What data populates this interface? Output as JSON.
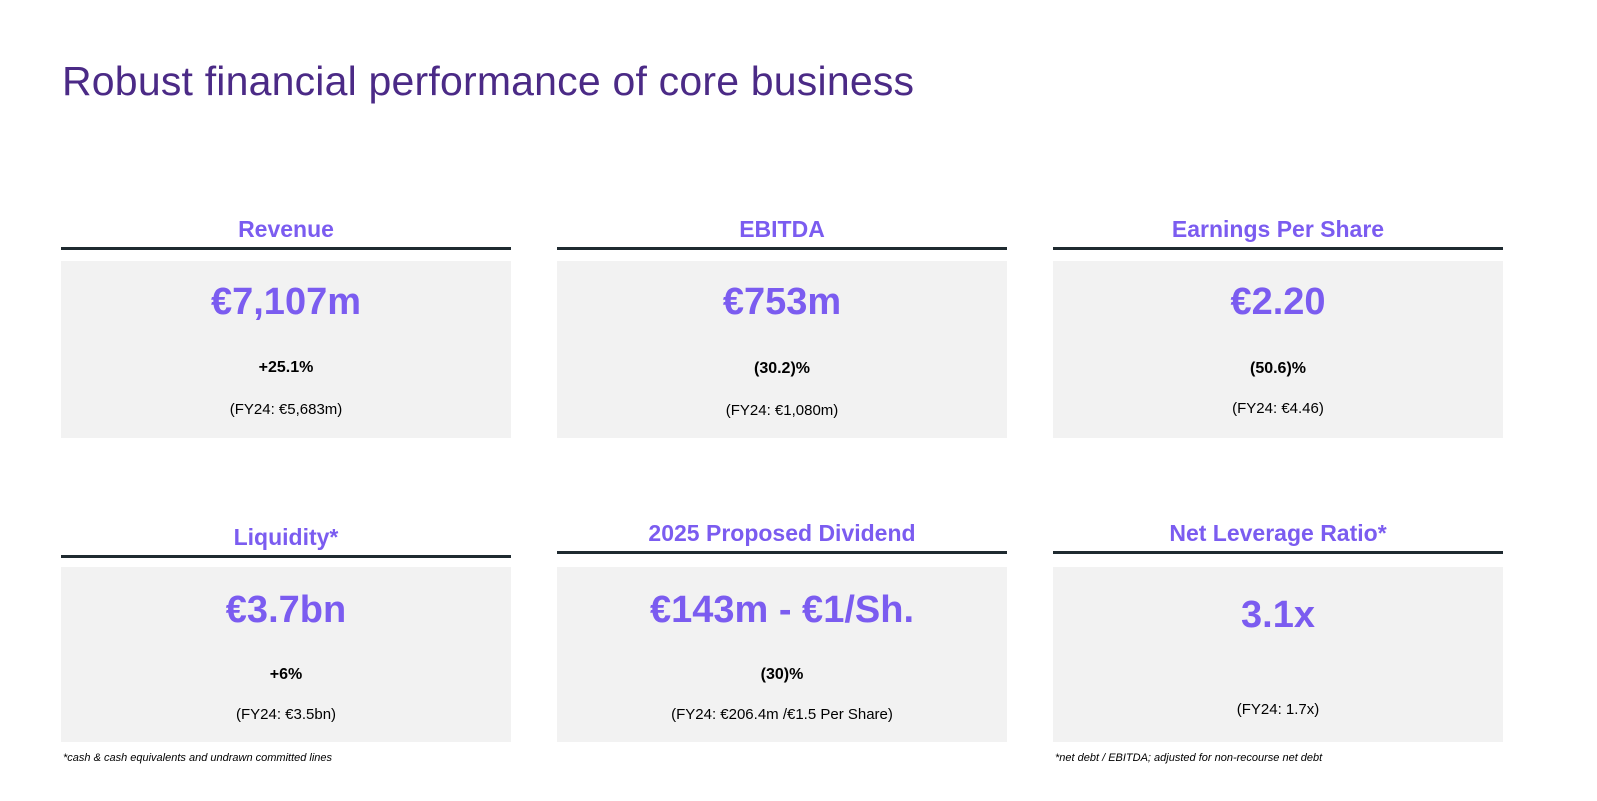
{
  "title": "Robust financial performance of core business",
  "cards": [
    {
      "heading": "Revenue",
      "value": "€7,107m",
      "change": "+25.1%",
      "prior": "(FY24: €5,683m)"
    },
    {
      "heading": "EBITDA",
      "value": "€753m",
      "change": "(30.2)%",
      "prior": "(FY24: €1,080m)"
    },
    {
      "heading": "Earnings Per Share",
      "value": "€2.20",
      "change": "(50.6)%",
      "prior": "(FY24: €4.46)"
    },
    {
      "heading": "Liquidity*",
      "value": "€3.7bn",
      "change": "+6%",
      "prior": "(FY24: €3.5bn)"
    },
    {
      "heading": "2025 Proposed Dividend",
      "value": "€143m - €1/Sh.",
      "change": "(30)%",
      "prior": "(FY24: €206.4m /€1.5 Per Share)"
    },
    {
      "heading": "Net Leverage Ratio*",
      "value": "3.1x",
      "change": "",
      "prior": "(FY24: 1.7x)"
    }
  ],
  "footnotes": {
    "left": "*cash & cash equivalents and undrawn committed lines",
    "right": "*net debt / EBITDA; adjusted for non-recourse net debt"
  }
}
